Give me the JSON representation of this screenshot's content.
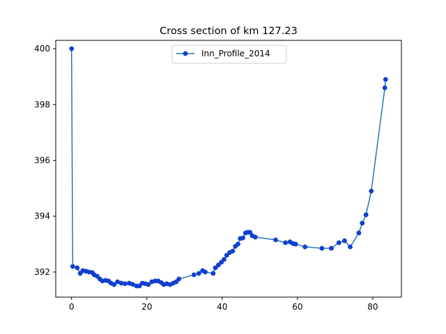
{
  "chart_data": {
    "type": "line",
    "title": "Cross section of km 127.23",
    "xlabel": "",
    "ylabel": "",
    "xlim": [
      -4.2,
      87.6
    ],
    "ylim": [
      391.1,
      400.3
    ],
    "xticks": [
      0,
      20,
      40,
      60,
      80
    ],
    "yticks": [
      392,
      394,
      396,
      398,
      400
    ],
    "grid": false,
    "legend": {
      "position": "top-center"
    },
    "series": [
      {
        "name": "Inn_Profile_2014",
        "color": "#1f77b4",
        "marker_color": "#1040d0",
        "points": [
          [
            0.0,
            400.0
          ],
          [
            0.3,
            392.2
          ],
          [
            1.5,
            392.15
          ],
          [
            2.3,
            391.95
          ],
          [
            3.0,
            392.05
          ],
          [
            3.8,
            392.03
          ],
          [
            4.6,
            392.0
          ],
          [
            5.5,
            391.98
          ],
          [
            6.0,
            391.9
          ],
          [
            6.8,
            391.85
          ],
          [
            7.5,
            391.75
          ],
          [
            8.2,
            391.68
          ],
          [
            9.0,
            391.7
          ],
          [
            9.8,
            391.68
          ],
          [
            10.5,
            391.6
          ],
          [
            11.3,
            391.55
          ],
          [
            12.2,
            391.65
          ],
          [
            13.2,
            391.6
          ],
          [
            14.2,
            391.58
          ],
          [
            15.3,
            391.6
          ],
          [
            16.2,
            391.56
          ],
          [
            17.2,
            391.5
          ],
          [
            18.0,
            391.5
          ],
          [
            18.8,
            391.6
          ],
          [
            19.6,
            391.58
          ],
          [
            20.4,
            391.55
          ],
          [
            21.3,
            391.65
          ],
          [
            22.2,
            391.68
          ],
          [
            23.0,
            391.68
          ],
          [
            23.8,
            391.62
          ],
          [
            24.5,
            391.55
          ],
          [
            25.3,
            391.58
          ],
          [
            26.2,
            391.55
          ],
          [
            27.0,
            391.6
          ],
          [
            27.8,
            391.65
          ],
          [
            28.5,
            391.75
          ],
          [
            32.5,
            391.9
          ],
          [
            33.8,
            391.95
          ],
          [
            34.8,
            392.05
          ],
          [
            35.5,
            392.0
          ],
          [
            37.6,
            391.95
          ],
          [
            38.2,
            392.15
          ],
          [
            39.0,
            392.25
          ],
          [
            39.8,
            392.35
          ],
          [
            40.5,
            392.45
          ],
          [
            41.2,
            392.6
          ],
          [
            42.0,
            392.7
          ],
          [
            42.8,
            392.75
          ],
          [
            43.5,
            392.92
          ],
          [
            44.2,
            393.0
          ],
          [
            44.8,
            393.2
          ],
          [
            45.5,
            393.22
          ],
          [
            46.2,
            393.4
          ],
          [
            46.8,
            393.42
          ],
          [
            47.4,
            393.42
          ],
          [
            48.0,
            393.3
          ],
          [
            48.8,
            393.25
          ],
          [
            54.2,
            393.15
          ],
          [
            56.8,
            393.05
          ],
          [
            58.0,
            393.08
          ],
          [
            58.8,
            393.02
          ],
          [
            59.5,
            393.0
          ],
          [
            62.0,
            392.9
          ],
          [
            66.5,
            392.85
          ],
          [
            69.0,
            392.85
          ],
          [
            71.0,
            393.05
          ],
          [
            72.5,
            393.12
          ],
          [
            74.0,
            392.9
          ],
          [
            76.3,
            393.4
          ],
          [
            77.2,
            393.75
          ],
          [
            78.2,
            394.05
          ],
          [
            79.6,
            394.9
          ],
          [
            83.2,
            398.6
          ],
          [
            83.4,
            398.9
          ]
        ]
      }
    ]
  }
}
